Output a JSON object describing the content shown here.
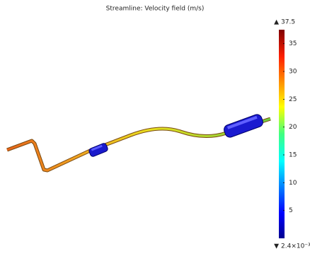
{
  "chart_data": {
    "type": "streamline",
    "title": "Streamline: Velocity field (m/s)",
    "colorbar": {
      "ylim": [
        0.0024,
        37.5
      ],
      "yticks": [
        5,
        10,
        15,
        20,
        25,
        30,
        35
      ],
      "max": {
        "value": 37.5,
        "label": "37.5"
      },
      "min": {
        "value": 0.0024,
        "label": "2.4×10⁻³"
      }
    }
  }
}
